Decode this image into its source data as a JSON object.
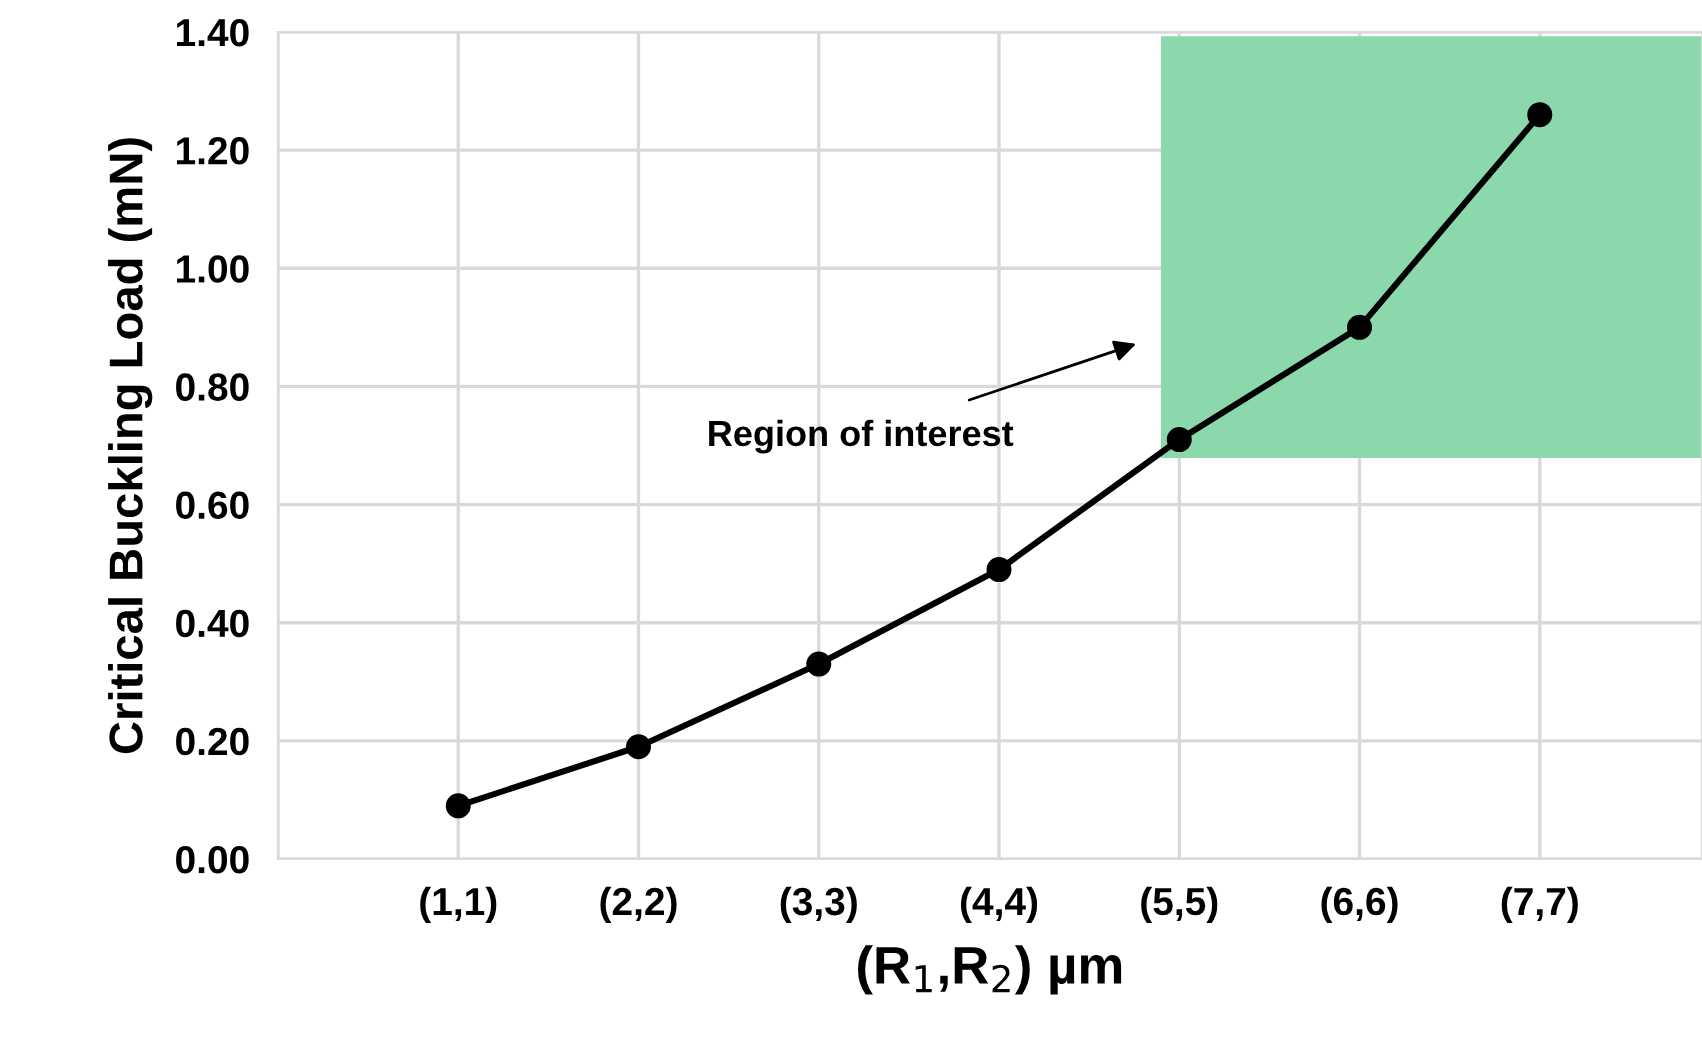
{
  "chart_data": {
    "type": "line",
    "xlabel": "(R$_{1}$,R$_{2}$) µm",
    "ylabel": "Critical Buckling Load (mN)",
    "categories": [
      null,
      "(1,1)",
      "(2,2)",
      "(3,3)",
      "(4,4)",
      "(5,5)",
      "(6,6)",
      "(7,7)"
    ],
    "series": [
      {
        "color": "#000000",
        "values": [
          null,
          0.09,
          0.19,
          0.33,
          0.49,
          0.71,
          0.9,
          1.26
        ]
      }
    ],
    "ylim": [
      0,
      1.4
    ],
    "yticks": [
      {
        "value": 0,
        "label": "0.00"
      },
      {
        "value": 0.2,
        "label": "0.20"
      },
      {
        "value": 0.4,
        "label": "0.40"
      },
      {
        "value": 0.6,
        "label": "0.60"
      },
      {
        "value": 0.8,
        "label": "0.80"
      },
      {
        "value": 1.0,
        "label": "1.00"
      },
      {
        "value": 1.2,
        "label": "1.20"
      },
      {
        "value": 1.4,
        "label": "1.40"
      }
    ],
    "annotations": [
      "Region of interest"
    ],
    "grid": true,
    "marker": "circle",
    "line_style": "solid",
    "legend": false
  }
}
